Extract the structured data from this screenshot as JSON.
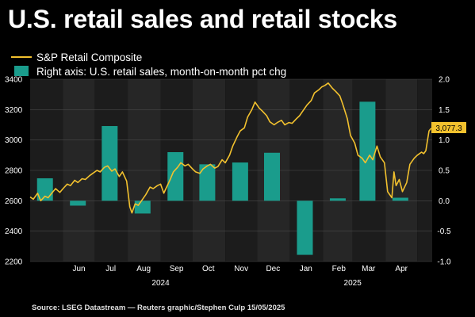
{
  "title": "U.S. retail sales and retail stocks",
  "source": "Source: LSEG Datastream — Reuters graphic/Stephen Culp 15/05/2025",
  "colors": {
    "background": "#000000",
    "band_dark": "#1c1c1c",
    "band_light": "#262626",
    "line": "#f2c12e",
    "bar": "#1a9c8c",
    "grid": "#4a4a4a"
  },
  "chart_data": {
    "type": "bar",
    "legend": {
      "position": "top-left",
      "line_label": "S&P Retail Composite",
      "bar_label": "Right axis: U.S. retail sales, month-on-month pct chg"
    },
    "last_value_label": "3,077.3",
    "left_axis": {
      "ylim": [
        2200,
        3400
      ],
      "ticks": [
        2200,
        2400,
        2600,
        2800,
        3000,
        3200,
        3400
      ]
    },
    "right_axis": {
      "ylim": [
        -1.0,
        2.0
      ],
      "ticks": [
        -1.0,
        -0.5,
        0.0,
        0.5,
        1.0,
        1.5,
        2.0
      ],
      "tick_labels": [
        "-1.0",
        "-0.5",
        "0.0",
        "0.5",
        "1.0",
        "1.5",
        "2.0"
      ]
    },
    "x_axis": {
      "range": [
        "2024-05-01",
        "2025-05-15"
      ],
      "month_labels": [
        "Jun",
        "Jul",
        "Aug",
        "Sep",
        "Oct",
        "Nov",
        "Dec",
        "Jan",
        "Feb",
        "Mar",
        "Apr"
      ],
      "year_labels": [
        {
          "label": "2024",
          "date": "2024-09-01"
        },
        {
          "label": "2025",
          "date": "2025-03-01"
        }
      ]
    },
    "bar_series": {
      "name": "U.S. retail sales, month-on-month pct chg",
      "dates": [
        "2024-05-15",
        "2024-06-15",
        "2024-07-15",
        "2024-08-15",
        "2024-09-15",
        "2024-10-15",
        "2024-11-15",
        "2024-12-15",
        "2025-01-15",
        "2025-02-15",
        "2025-03-15",
        "2025-04-15"
      ],
      "values": [
        0.37,
        -0.08,
        1.23,
        -0.21,
        0.8,
        0.6,
        0.63,
        0.79,
        -0.89,
        0.04,
        1.63,
        0.05
      ]
    },
    "line_series": {
      "name": "S&P Retail Composite",
      "points": [
        [
          "2024-05-01",
          2625
        ],
        [
          "2024-05-04",
          2610
        ],
        [
          "2024-05-08",
          2650
        ],
        [
          "2024-05-11",
          2600
        ],
        [
          "2024-05-15",
          2630
        ],
        [
          "2024-05-18",
          2620
        ],
        [
          "2024-05-22",
          2655
        ],
        [
          "2024-05-25",
          2680
        ],
        [
          "2024-05-29",
          2655
        ],
        [
          "2024-06-01",
          2680
        ],
        [
          "2024-06-05",
          2710
        ],
        [
          "2024-06-08",
          2700
        ],
        [
          "2024-06-12",
          2735
        ],
        [
          "2024-06-15",
          2720
        ],
        [
          "2024-06-19",
          2745
        ],
        [
          "2024-06-22",
          2740
        ],
        [
          "2024-06-26",
          2765
        ],
        [
          "2024-06-29",
          2780
        ],
        [
          "2024-07-03",
          2800
        ],
        [
          "2024-07-06",
          2790
        ],
        [
          "2024-07-10",
          2820
        ],
        [
          "2024-07-13",
          2830
        ],
        [
          "2024-07-17",
          2795
        ],
        [
          "2024-07-20",
          2810
        ],
        [
          "2024-07-24",
          2760
        ],
        [
          "2024-07-27",
          2790
        ],
        [
          "2024-07-31",
          2730
        ],
        [
          "2024-08-03",
          2560
        ],
        [
          "2024-08-05",
          2520
        ],
        [
          "2024-08-08",
          2580
        ],
        [
          "2024-08-11",
          2570
        ],
        [
          "2024-08-15",
          2610
        ],
        [
          "2024-08-18",
          2640
        ],
        [
          "2024-08-22",
          2690
        ],
        [
          "2024-08-25",
          2680
        ],
        [
          "2024-08-29",
          2700
        ],
        [
          "2024-09-01",
          2710
        ],
        [
          "2024-09-04",
          2650
        ],
        [
          "2024-09-06",
          2680
        ],
        [
          "2024-09-10",
          2740
        ],
        [
          "2024-09-13",
          2790
        ],
        [
          "2024-09-17",
          2820
        ],
        [
          "2024-09-20",
          2850
        ],
        [
          "2024-09-24",
          2830
        ],
        [
          "2024-09-27",
          2840
        ],
        [
          "2024-10-01",
          2810
        ],
        [
          "2024-10-04",
          2790
        ],
        [
          "2024-10-08",
          2780
        ],
        [
          "2024-10-11",
          2810
        ],
        [
          "2024-10-15",
          2830
        ],
        [
          "2024-10-18",
          2840
        ],
        [
          "2024-10-22",
          2815
        ],
        [
          "2024-10-25",
          2825
        ],
        [
          "2024-10-29",
          2870
        ],
        [
          "2024-11-01",
          2850
        ],
        [
          "2024-11-05",
          2900
        ],
        [
          "2024-11-08",
          2960
        ],
        [
          "2024-11-12",
          3020
        ],
        [
          "2024-11-15",
          3060
        ],
        [
          "2024-11-19",
          3080
        ],
        [
          "2024-11-22",
          3150
        ],
        [
          "2024-11-26",
          3200
        ],
        [
          "2024-11-29",
          3250
        ],
        [
          "2024-12-03",
          3210
        ],
        [
          "2024-12-06",
          3190
        ],
        [
          "2024-12-10",
          3160
        ],
        [
          "2024-12-13",
          3120
        ],
        [
          "2024-12-17",
          3100
        ],
        [
          "2024-12-20",
          3115
        ],
        [
          "2024-12-24",
          3130
        ],
        [
          "2024-12-27",
          3100
        ],
        [
          "2024-12-31",
          3115
        ],
        [
          "2025-01-03",
          3110
        ],
        [
          "2025-01-07",
          3140
        ],
        [
          "2025-01-10",
          3160
        ],
        [
          "2025-01-14",
          3200
        ],
        [
          "2025-01-17",
          3230
        ],
        [
          "2025-01-21",
          3260
        ],
        [
          "2025-01-24",
          3310
        ],
        [
          "2025-01-28",
          3330
        ],
        [
          "2025-01-31",
          3350
        ],
        [
          "2025-02-03",
          3360
        ],
        [
          "2025-02-06",
          3375
        ],
        [
          "2025-02-10",
          3340
        ],
        [
          "2025-02-13",
          3320
        ],
        [
          "2025-02-17",
          3290
        ],
        [
          "2025-02-20",
          3230
        ],
        [
          "2025-02-24",
          3140
        ],
        [
          "2025-02-27",
          3030
        ],
        [
          "2025-03-03",
          2980
        ],
        [
          "2025-03-06",
          2900
        ],
        [
          "2025-03-10",
          2880
        ],
        [
          "2025-03-13",
          2850
        ],
        [
          "2025-03-17",
          2900
        ],
        [
          "2025-03-20",
          2870
        ],
        [
          "2025-03-24",
          2960
        ],
        [
          "2025-03-27",
          2890
        ],
        [
          "2025-03-31",
          2850
        ],
        [
          "2025-04-03",
          2660
        ],
        [
          "2025-04-07",
          2620
        ],
        [
          "2025-04-09",
          2790
        ],
        [
          "2025-04-11",
          2700
        ],
        [
          "2025-04-14",
          2740
        ],
        [
          "2025-04-17",
          2660
        ],
        [
          "2025-04-21",
          2720
        ],
        [
          "2025-04-24",
          2840
        ],
        [
          "2025-04-28",
          2880
        ],
        [
          "2025-05-01",
          2900
        ],
        [
          "2025-05-05",
          2920
        ],
        [
          "2025-05-07",
          2910
        ],
        [
          "2025-05-09",
          2930
        ],
        [
          "2025-05-12",
          3060
        ],
        [
          "2025-05-14",
          3077.3
        ]
      ]
    }
  }
}
